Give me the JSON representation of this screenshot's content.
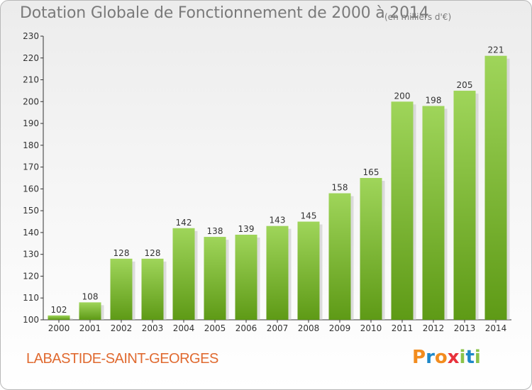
{
  "title": "Dotation Globale de Fonctionnement de 2000 à 2014",
  "unit_note": "(en milliers d'€)",
  "commune": "LABASTIDE-SAINT-GEORGES",
  "logo": {
    "text": "Proxiti",
    "colors": [
      "#f28c1e",
      "#1e88c8",
      "#f28c1e",
      "#e8323c",
      "#8bc34a",
      "#1e88c8",
      "#8bc34a"
    ]
  },
  "colors": {
    "bar_top": "#9fd55a",
    "bar_bottom": "#5e9a16",
    "axis": "#333333",
    "title": "#7a7a7a",
    "commune": "#e06a30"
  },
  "chart_data": {
    "type": "bar",
    "categories": [
      "2000",
      "2001",
      "2002",
      "2003",
      "2004",
      "2005",
      "2006",
      "2007",
      "2008",
      "2009",
      "2010",
      "2011",
      "2012",
      "2013",
      "2014"
    ],
    "values": [
      102,
      108,
      128,
      128,
      142,
      138,
      139,
      143,
      145,
      158,
      165,
      200,
      198,
      205,
      221
    ],
    "ylim": [
      100,
      230
    ],
    "yticks": [
      100,
      110,
      120,
      130,
      140,
      150,
      160,
      170,
      180,
      190,
      200,
      210,
      220,
      230
    ],
    "grid": false,
    "title": "Dotation Globale de Fonctionnement de 2000 à 2014",
    "xlabel": "",
    "ylabel": ""
  }
}
